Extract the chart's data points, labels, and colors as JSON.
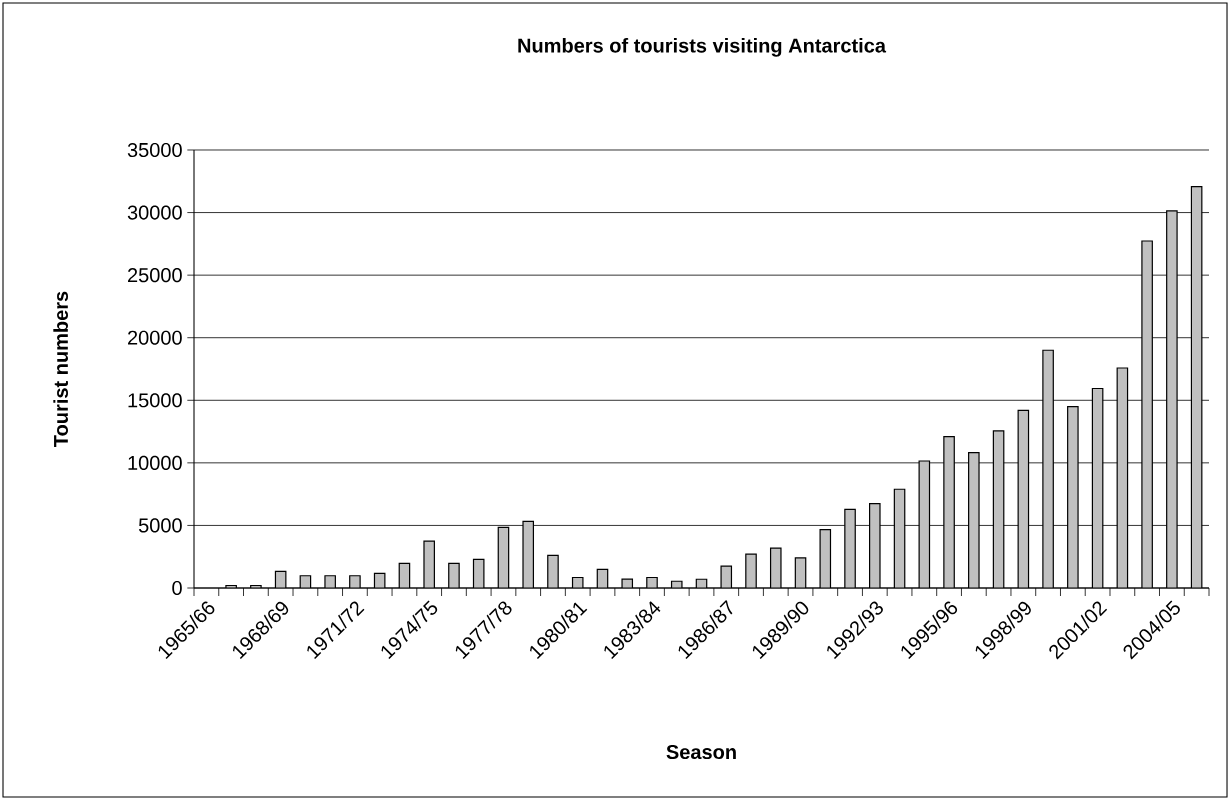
{
  "chart_data": {
    "type": "bar",
    "title": "Numbers of tourists visiting Antarctica",
    "xlabel": "Season",
    "ylabel": "Tourist numbers",
    "categories": [
      "1965/66",
      null,
      null,
      "1968/69",
      null,
      null,
      "1971/72",
      null,
      null,
      "1974/75",
      null,
      null,
      "1977/78",
      null,
      null,
      "1980/81",
      null,
      null,
      "1983/84",
      null,
      null,
      "1986/87",
      null,
      null,
      "1989/90",
      null,
      null,
      "1992/93",
      null,
      null,
      "1995/96",
      null,
      null,
      "1998/99",
      null,
      null,
      "2001/02",
      null,
      null,
      "2004/05",
      null
    ],
    "values": [
      null,
      200,
      200,
      1330,
      980,
      980,
      980,
      1170,
      1960,
      3750,
      1960,
      2280,
      4840,
      5330,
      2610,
      840,
      1490,
      710,
      840,
      540,
      700,
      1750,
      2700,
      3190,
      2400,
      4670,
      6280,
      6740,
      7890,
      10150,
      12090,
      10810,
      12550,
      14190,
      19000,
      14490,
      15940,
      17580,
      27730,
      30130,
      32070
    ],
    "color": "#c0c0c0",
    "ylim": [
      0,
      35000
    ],
    "yticks": [
      0,
      5000,
      10000,
      15000,
      20000,
      25000,
      30000,
      35000
    ],
    "grid": "y"
  }
}
